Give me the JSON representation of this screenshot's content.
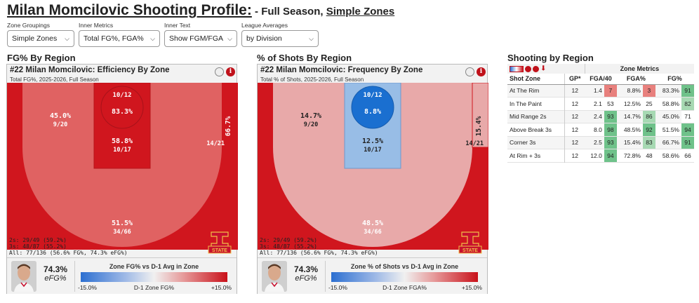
{
  "header": {
    "title": "Milan Momcilovic Shooting Profile:",
    "subtitle_prefix": " - Full Season, ",
    "subtitle_link": "Simple Zones"
  },
  "controls": [
    {
      "label": "Zone Groupings",
      "value": "Simple Zones"
    },
    {
      "label": "Inner Metrics",
      "value": "Total FG%, FGA%"
    },
    {
      "label": "Inner Text",
      "value": "Show FGM/FGA"
    },
    {
      "label": "League Averages",
      "value": "by Division"
    }
  ],
  "sections": {
    "efficiency": "FG% By Region",
    "frequency": "% of Shots By Region",
    "table": "Shooting by Region"
  },
  "efficiency_panel": {
    "title": "#22 Milan Momcilovic: Efficiency By Zone",
    "subtitle": "Total FG%, 2025-2026, Full Season",
    "zones": {
      "rim": {
        "main": "83.3%",
        "sub": "10/12"
      },
      "paint": {
        "main": "58.8%",
        "sub": "10/17"
      },
      "mid": {
        "main": "45.0%",
        "sub": "9/20"
      },
      "corner": {
        "main": "66.7%",
        "sub": "14/21"
      },
      "three": {
        "main": "51.5%",
        "sub": "34/66"
      }
    },
    "stats": [
      "2s: 29/49 (59.2%)",
      "3s: 48/87 (55.2%)",
      "All: 77/136 (56.6% FG%, 74.3% eFG%)"
    ],
    "efg_value": "74.3%",
    "efg_label": "eFG%",
    "legend_title": "Zone FG% vs D-1 Avg in Zone",
    "legend_low": "-15.0%",
    "legend_mid": "D-1 Zone FG%",
    "legend_high": "+15.0%"
  },
  "frequency_panel": {
    "title": "#22 Milan Momcilovic: Frequency By Zone",
    "subtitle": "Total % of Shots, 2025-2026, Full Season",
    "zones": {
      "rim": {
        "main": "8.8%",
        "sub": "10/12"
      },
      "paint": {
        "main": "12.5%",
        "sub": "10/17"
      },
      "mid": {
        "main": "14.7%",
        "sub": "9/20"
      },
      "corner": {
        "main": "15.4%",
        "sub": "14/21"
      },
      "three": {
        "main": "48.5%",
        "sub": "34/66"
      }
    },
    "stats": [
      "2s: 29/49 (59.2%)",
      "3s: 48/87 (55.2%)",
      "All: 77/136 (56.6% FG%, 74.3% eFG%)"
    ],
    "efg_value": "74.3%",
    "efg_label": "eFG%",
    "legend_title": "Zone % of Shots vs D-1 Avg in Zone",
    "legend_low": "-15.0%",
    "legend_mid": "D-1 Zone FGA%",
    "legend_high": "+15.0%"
  },
  "logo_text": "STATE",
  "table": {
    "group_header": "Zone Metrics",
    "columns": [
      "Shot Zone",
      "GP*",
      "FGA/40",
      "FGA%",
      "FG%"
    ],
    "rows": [
      {
        "zone": "At The Rim",
        "gp": "12",
        "fga40": "1.4",
        "fga40_pct": "7",
        "fgapct": "8.8%",
        "fgapct_pct": "3",
        "fg": "83.3%",
        "fg_pct": "91"
      },
      {
        "zone": "In The Paint",
        "gp": "12",
        "fga40": "2.1",
        "fga40_pct": "53",
        "fgapct": "12.5%",
        "fgapct_pct": "25",
        "fg": "58.8%",
        "fg_pct": "82"
      },
      {
        "zone": "Mid Range 2s",
        "gp": "12",
        "fga40": "2.4",
        "fga40_pct": "93",
        "fgapct": "14.7%",
        "fgapct_pct": "86",
        "fg": "45.0%",
        "fg_pct": "71"
      },
      {
        "zone": "Above Break 3s",
        "gp": "12",
        "fga40": "8.0",
        "fga40_pct": "98",
        "fgapct": "48.5%",
        "fgapct_pct": "92",
        "fg": "51.5%",
        "fg_pct": "94"
      },
      {
        "zone": "Corner 3s",
        "gp": "12",
        "fga40": "2.5",
        "fga40_pct": "93",
        "fgapct": "15.4%",
        "fgapct_pct": "83",
        "fg": "66.7%",
        "fg_pct": "91"
      },
      {
        "zone": "At Rim + 3s",
        "gp": "12",
        "fga40": "12.0",
        "fga40_pct": "94",
        "fgapct": "72.8%",
        "fgapct_pct": "48",
        "fg": "58.6%",
        "fg_pct": "66"
      }
    ],
    "pct_colors": {
      "red": "#e8807d",
      "light_green": "#a7d9b3",
      "green": "#6fc28a",
      "white": "#ffffff"
    }
  },
  "colors": {
    "dark_red": "#d0161e",
    "mid_red": "#e06262",
    "light_red": "#e8a9a9",
    "blue": "#1a6fd0",
    "light_blue": "#98bde6"
  }
}
